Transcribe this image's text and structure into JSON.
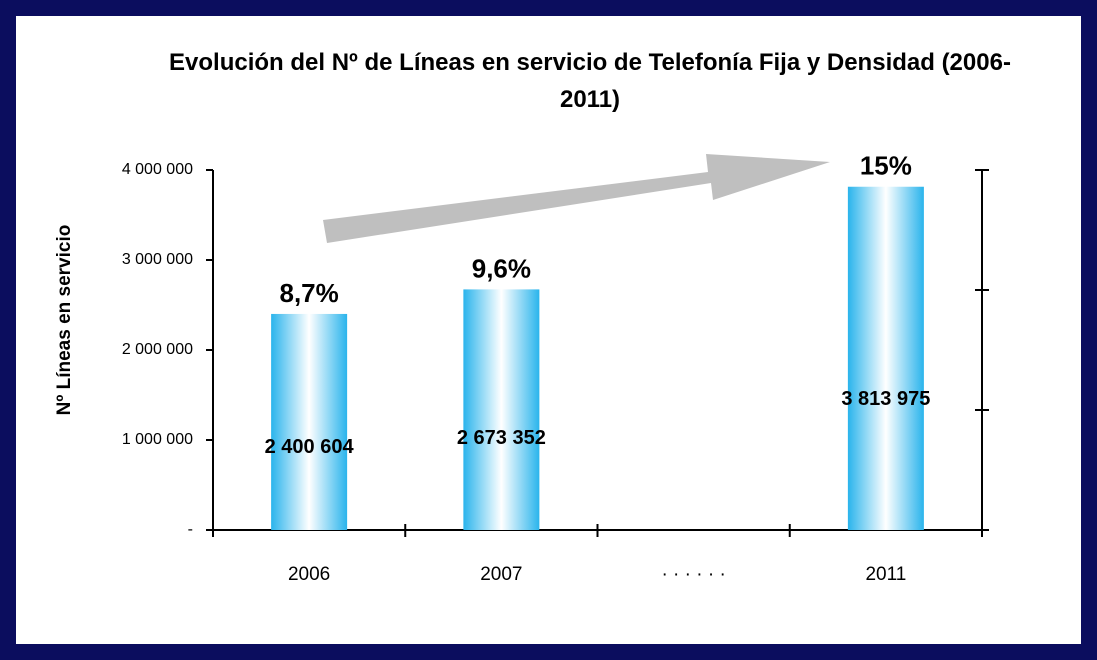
{
  "chart_data": {
    "type": "bar",
    "title": "Evolución del Nº de Líneas en servicio de Telefonía Fija y Densidad (2006-2011)",
    "y_label": "Nº Líneas en servicio",
    "categories": [
      "2006",
      "2007",
      "· · · · · ·",
      "2011"
    ],
    "values": [
      2400604,
      2673352,
      null,
      3813975
    ],
    "value_labels": [
      "2 400 604",
      "2 673 352",
      null,
      "3 813 975"
    ],
    "density_labels": [
      "8,7%",
      "9,6%",
      null,
      "15%"
    ],
    "ylim": [
      0,
      4000000
    ],
    "yticks": [
      {
        "value": 0,
        "label": "-"
      },
      {
        "value": 1000000,
        "label": "1 000 000"
      },
      {
        "value": 2000000,
        "label": "2 000 000"
      },
      {
        "value": 3000000,
        "label": "3 000 000"
      },
      {
        "value": 4000000,
        "label": "4 000 000"
      }
    ],
    "color": "#33bbee"
  }
}
